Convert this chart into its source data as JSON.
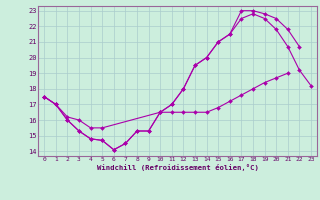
{
  "title": "",
  "xlabel": "Windchill (Refroidissement éolien,°C)",
  "bg_color": "#cceedd",
  "grid_color": "#aacccc",
  "line_color": "#aa00aa",
  "xlim": [
    -0.5,
    23.5
  ],
  "ylim": [
    13.7,
    23.3
  ],
  "xticks": [
    0,
    1,
    2,
    3,
    4,
    5,
    6,
    7,
    8,
    9,
    10,
    11,
    12,
    13,
    14,
    15,
    16,
    17,
    18,
    19,
    20,
    21,
    22,
    23
  ],
  "yticks": [
    14,
    15,
    16,
    17,
    18,
    19,
    20,
    21,
    22,
    23
  ],
  "line1_x": [
    0,
    1,
    2,
    3,
    4,
    5,
    6,
    7,
    8,
    9,
    10,
    11,
    12,
    13,
    14,
    15,
    16,
    17,
    18,
    19,
    20,
    21
  ],
  "line1_y": [
    17.5,
    17.0,
    16.0,
    15.3,
    14.8,
    14.7,
    14.1,
    14.5,
    15.3,
    15.3,
    16.5,
    16.5,
    16.5,
    16.5,
    16.5,
    16.8,
    17.2,
    17.6,
    18.0,
    18.4,
    18.7,
    19.0
  ],
  "line2_x": [
    0,
    1,
    2,
    3,
    4,
    5,
    6,
    7,
    8,
    9,
    10,
    11,
    12,
    13,
    14,
    15,
    16,
    17,
    18,
    19,
    20,
    21,
    22,
    23
  ],
  "line2_y": [
    17.5,
    17.0,
    16.0,
    15.3,
    14.8,
    14.7,
    14.1,
    14.5,
    15.3,
    15.3,
    16.5,
    17.0,
    18.0,
    19.5,
    20.0,
    21.0,
    21.5,
    22.5,
    22.8,
    22.5,
    21.8,
    20.7,
    19.2,
    18.2
  ],
  "line3_x": [
    0,
    1,
    2,
    3,
    4,
    5,
    10,
    11,
    12,
    13,
    14,
    15,
    16,
    17,
    18,
    19,
    20,
    21,
    22
  ],
  "line3_y": [
    17.5,
    17.0,
    16.2,
    16.0,
    15.5,
    15.5,
    16.5,
    17.0,
    18.0,
    19.5,
    20.0,
    21.0,
    21.5,
    23.0,
    23.0,
    22.8,
    22.5,
    21.8,
    20.7
  ]
}
